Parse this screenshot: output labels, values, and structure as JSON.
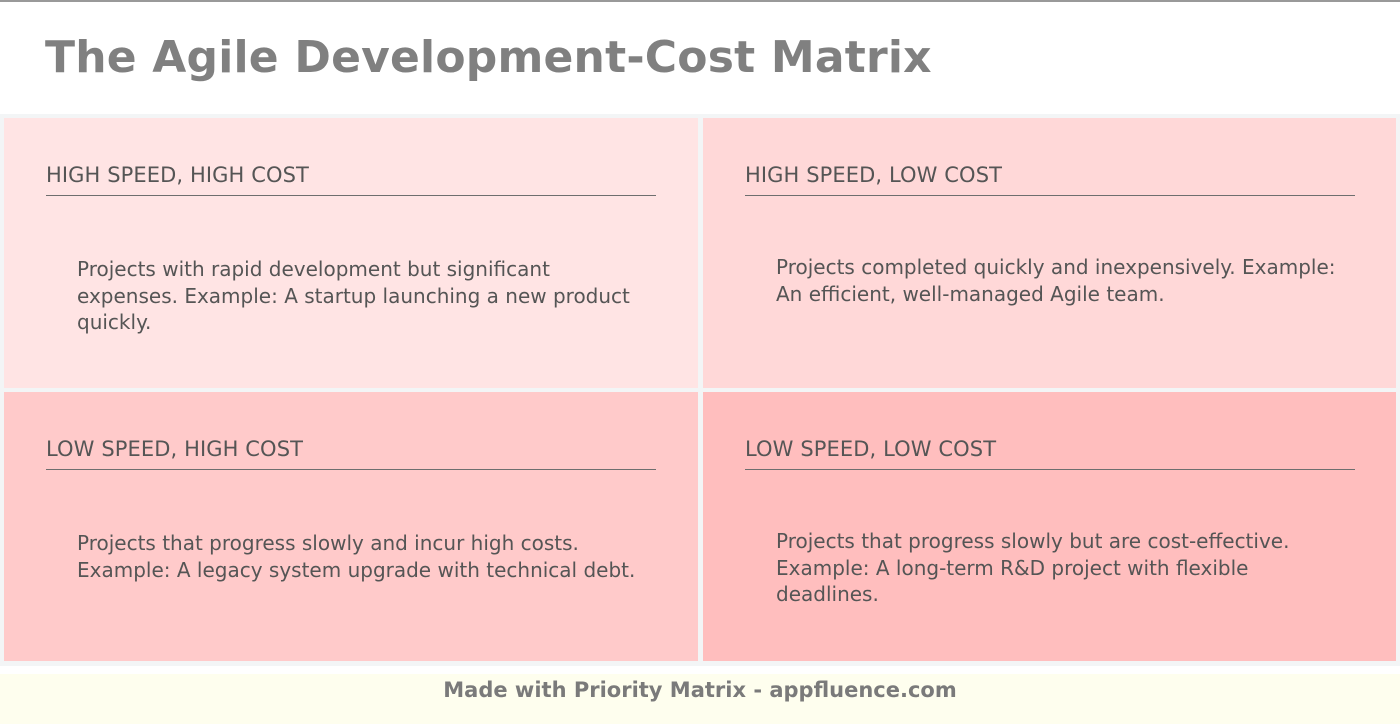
{
  "header": {
    "title": "The Agile Development-Cost Matrix"
  },
  "matrix": {
    "quadrants": [
      {
        "title": "HIGH SPEED, HIGH COST",
        "body": "Projects with rapid development but significant expenses. Example: A startup launching a new product quickly.",
        "color": "#ffe4e4"
      },
      {
        "title": "HIGH SPEED, LOW COST",
        "body": "Projects completed quickly and inexpensively. Example: An efficient, well-managed Agile team.",
        "color": "#ffd8d8"
      },
      {
        "title": "LOW SPEED, HIGH COST",
        "body": "Projects that progress slowly and incur high costs. Example: A legacy system upgrade with technical debt.",
        "color": "#ffcaca"
      },
      {
        "title": "LOW SPEED, LOW COST",
        "body": "Projects that progress slowly but are cost-effective. Example: A long-term R&D project with flexible deadlines.",
        "color": "#ffbebe"
      }
    ]
  },
  "footer": {
    "text": "Made with Priority Matrix - appfluence.com"
  }
}
